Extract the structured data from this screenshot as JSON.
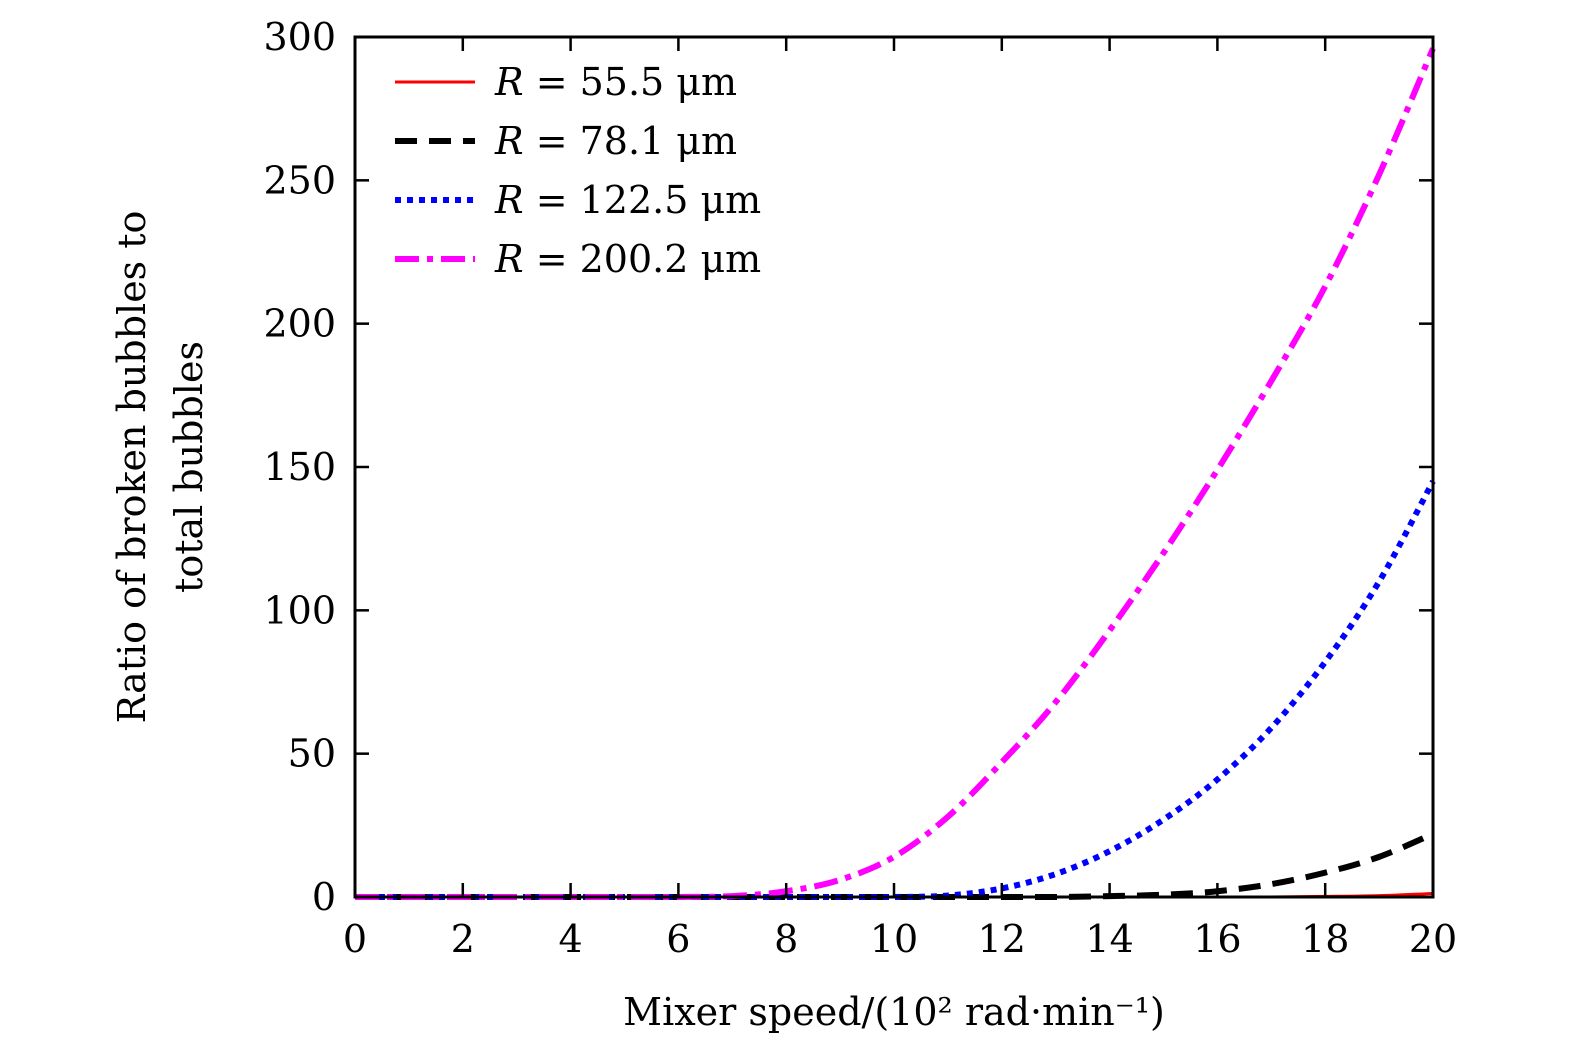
{
  "chart_data": {
    "type": "line",
    "xlabel": "Mixer speed/(10² rad·min⁻¹)",
    "ylabel_lines": [
      "Ratio of broken bubbles to",
      "total bubbles"
    ],
    "xlim": [
      0,
      20
    ],
    "ylim": [
      0,
      300
    ],
    "xticks": [
      "0",
      "2",
      "4",
      "6",
      "8",
      "10",
      "12",
      "14",
      "16",
      "18",
      "20"
    ],
    "yticks": [
      "0",
      "50",
      "100",
      "150",
      "200",
      "250",
      "300"
    ],
    "grid": false,
    "legend_position": "top-left",
    "x": [
      0,
      1,
      2,
      3,
      4,
      5,
      6,
      7,
      8,
      9,
      10,
      11,
      12,
      13,
      14,
      15,
      16,
      17,
      18,
      19,
      20
    ],
    "series": [
      {
        "name": "R = 55.5 μm",
        "color": "#ff0000",
        "style": "solid",
        "values": [
          0,
          0,
          0,
          0,
          0,
          0,
          0,
          0,
          0,
          0,
          0,
          0,
          0,
          0,
          0,
          0,
          0,
          0,
          0.2,
          0.5,
          1.2
        ]
      },
      {
        "name": "R = 78.1 μm",
        "color": "#000000",
        "style": "dashed",
        "values": [
          0,
          0,
          0,
          0,
          0,
          0,
          0,
          0,
          0,
          0,
          0,
          0,
          0,
          0,
          0.3,
          0.8,
          2,
          4.5,
          8.5,
          14,
          22
        ]
      },
      {
        "name": "R = 122.5 μm",
        "color": "#0000ff",
        "style": "dotted",
        "values": [
          0,
          0,
          0,
          0,
          0,
          0,
          0,
          0,
          0,
          0,
          0,
          0.5,
          3,
          8,
          16,
          27,
          41,
          59,
          82,
          110,
          145
        ]
      },
      {
        "name": "R = 200.2 μm",
        "color": "#ff00ff",
        "style": "dash-dot",
        "values": [
          0,
          0,
          0,
          0,
          0,
          0,
          0,
          0.3,
          2,
          6,
          14,
          28,
          47,
          68,
          93,
          120,
          149,
          180,
          213,
          252,
          296
        ]
      }
    ]
  }
}
